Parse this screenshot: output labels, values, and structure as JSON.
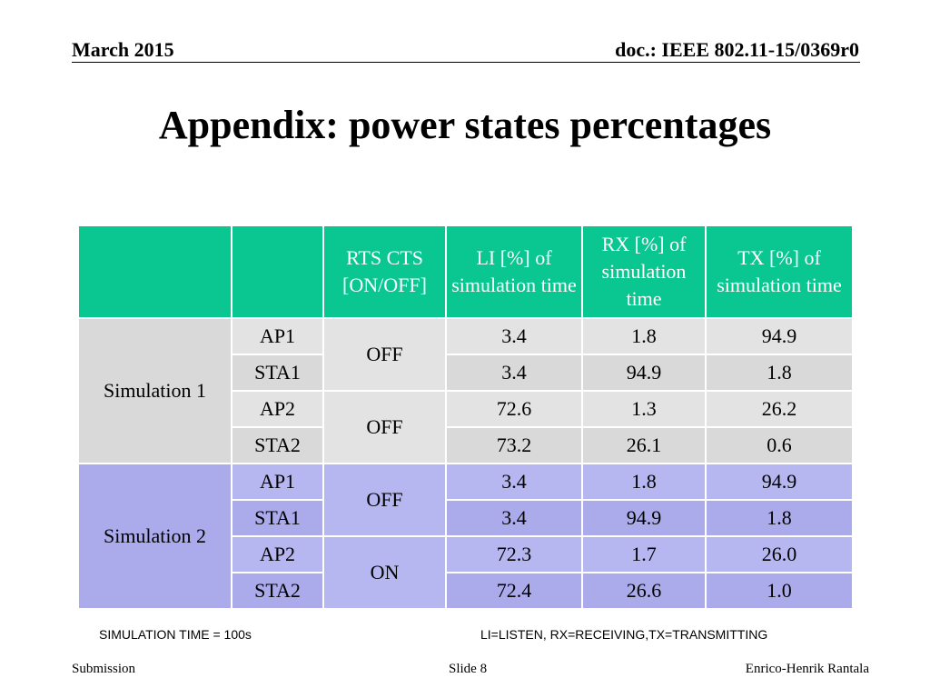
{
  "header": {
    "date": "March 2015",
    "doc": "doc.: IEEE 802.11-15/0369r0"
  },
  "title": "Appendix: power states percentages",
  "table": {
    "headers": {
      "rts_cts": "RTS CTS [ON/OFF]",
      "li": "LI [%] of simulation time",
      "rx": "RX [%] of simulation time",
      "tx": "TX [%] of simulation time"
    },
    "simulations": [
      {
        "label": "Simulation 1",
        "rows": [
          {
            "node": "AP1",
            "li": "3.4",
            "rx": "1.8",
            "tx": "94.9"
          },
          {
            "node": "STA1",
            "li": "3.4",
            "rx": "94.9",
            "tx": "1.8"
          },
          {
            "node": "AP2",
            "li": "72.6",
            "rx": "1.3",
            "tx": "26.2"
          },
          {
            "node": "STA2",
            "li": "73.2",
            "rx": "26.1",
            "tx": "0.6"
          }
        ],
        "rts": [
          "OFF",
          "OFF"
        ]
      },
      {
        "label": "Simulation 2",
        "rows": [
          {
            "node": "AP1",
            "li": "3.4",
            "rx": "1.8",
            "tx": "94.9"
          },
          {
            "node": "STA1",
            "li": "3.4",
            "rx": "94.9",
            "tx": "1.8"
          },
          {
            "node": "AP2",
            "li": "72.3",
            "rx": "1.7",
            "tx": "26.0"
          },
          {
            "node": "STA2",
            "li": "72.4",
            "rx": "26.6",
            "tx": "1.0"
          }
        ],
        "rts": [
          "OFF",
          "ON"
        ]
      }
    ]
  },
  "notes": {
    "left": "SIMULATION TIME = 100s",
    "right": "LI=LISTEN, RX=RECEIVING,TX=TRANSMITTING"
  },
  "footer": {
    "left": "Submission",
    "center": "Slide 8",
    "right": "Enrico-Henrik Rantala"
  },
  "colors": {
    "header_fill": "#0ac792",
    "sim1_fill": "#d9d9d9",
    "sim2_fill": "#ababeb"
  }
}
